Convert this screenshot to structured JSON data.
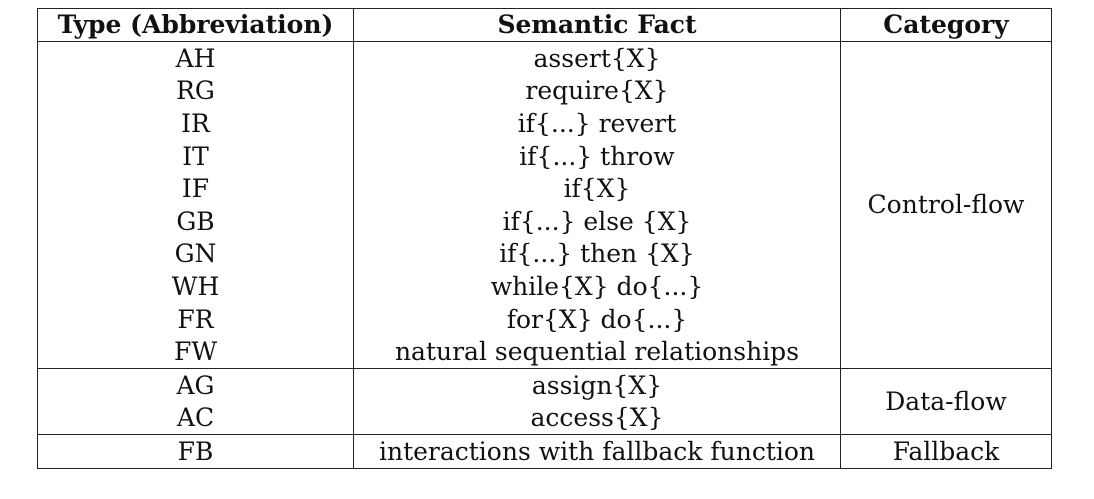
{
  "table": {
    "headers": {
      "type": "Type (Abbreviation)",
      "fact": "Semantic Fact",
      "category": "Category"
    },
    "groups": [
      {
        "category": "Control-flow",
        "rows": [
          {
            "type": "AH",
            "fact": "assert{X}"
          },
          {
            "type": "RG",
            "fact": "require{X}"
          },
          {
            "type": "IR",
            "fact": "if{...} revert"
          },
          {
            "type": "IT",
            "fact": "if{...} throw"
          },
          {
            "type": "IF",
            "fact": "if{X}"
          },
          {
            "type": "GB",
            "fact": "if{...} else {X}"
          },
          {
            "type": "GN",
            "fact": "if{...} then {X}"
          },
          {
            "type": "WH",
            "fact": "while{X} do{...}"
          },
          {
            "type": "FR",
            "fact": "for{X} do{...}"
          },
          {
            "type": "FW",
            "fact": "natural sequential relationships"
          }
        ]
      },
      {
        "category": "Data-flow",
        "rows": [
          {
            "type": "AG",
            "fact": "assign{X}"
          },
          {
            "type": "AC",
            "fact": "access{X}"
          }
        ]
      },
      {
        "category": "Fallback",
        "rows": [
          {
            "type": "FB",
            "fact": "interactions with fallback function"
          }
        ]
      }
    ]
  }
}
